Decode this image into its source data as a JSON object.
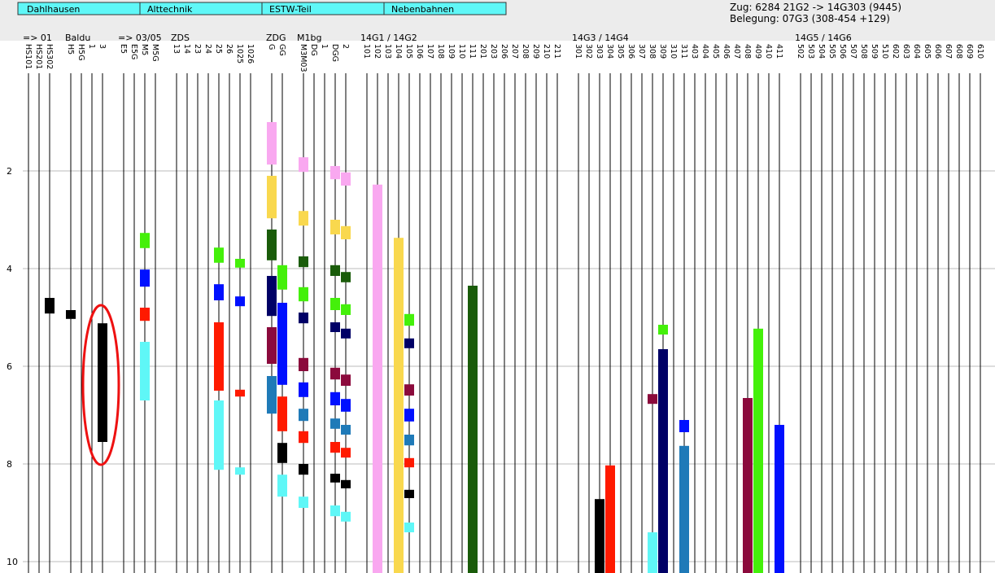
{
  "tabs": [
    "Dahlhausen",
    "Alttechnik",
    "ESTW-Teil",
    "Nebenbahnen"
  ],
  "info": [
    "Zug: 6284 21G2 -> 14G303 (9445)",
    "Belegung: 07G3 (308-454 +129)"
  ],
  "groups": [
    "=> 01",
    "Baldu",
    "=> 03/05",
    "ZDS",
    "ZDG",
    "M1bg",
    "14G1 / 14G2",
    "14G3 / 14G4",
    "14G5 / 14G6"
  ],
  "chart_data": {
    "type": "occupancy",
    "categories": [
      "HS101",
      "HS201",
      "HS302",
      null,
      "H5",
      "H5G",
      "1",
      "3",
      null,
      "E5",
      "E5G",
      "M5",
      "M5G",
      null,
      "13",
      "14",
      "23",
      "24",
      "25",
      "26",
      "1025",
      "1026",
      null,
      "G",
      "GG",
      null,
      "M3M03",
      "DG",
      "1",
      "DGG",
      "2",
      null,
      "101",
      "102",
      "103",
      "104",
      "105",
      "106",
      "107",
      "108",
      "109",
      "110",
      "111",
      "201",
      "203",
      "206",
      "207",
      "208",
      "209",
      "210",
      "211",
      null,
      "301",
      "302",
      "303",
      "304",
      "305",
      "306",
      "307",
      "308",
      "309",
      "310",
      "311",
      "403",
      "404",
      "405",
      "406",
      "407",
      "408",
      "409",
      "410",
      "411",
      null,
      "502",
      "503",
      "504",
      "505",
      "506",
      "507",
      "508",
      "509",
      "510",
      "602",
      "603",
      "604",
      "605",
      "606",
      "607",
      "608",
      "609",
      "610"
    ],
    "ylim": [
      0,
      10.25
    ],
    "yticks": [
      2,
      4,
      6,
      8,
      10
    ],
    "grid": true,
    "bars": [
      {
        "track": 2,
        "start": 4.6,
        "end": 4.92,
        "color": "#000000"
      },
      {
        "track": 4,
        "start": 4.85,
        "end": 5.03,
        "color": "#000000"
      },
      {
        "track": 7,
        "start": 5.12,
        "end": 7.55,
        "color": "#000000"
      },
      {
        "track": 11,
        "start": 3.27,
        "end": 3.58,
        "color": "#44f00a"
      },
      {
        "track": 11,
        "start": 4.02,
        "end": 4.37,
        "color": "#0010ff"
      },
      {
        "track": 11,
        "start": 4.8,
        "end": 5.07,
        "color": "#ff1a00"
      },
      {
        "track": 11,
        "start": 5.5,
        "end": 6.7,
        "color": "#5ff7f7"
      },
      {
        "track": 18,
        "start": 3.57,
        "end": 3.88,
        "color": "#44f00a"
      },
      {
        "track": 18,
        "start": 4.32,
        "end": 4.65,
        "color": "#0010ff"
      },
      {
        "track": 18,
        "start": 5.1,
        "end": 6.5,
        "color": "#ff1a00"
      },
      {
        "track": 18,
        "start": 6.7,
        "end": 8.12,
        "color": "#5ff7f7"
      },
      {
        "track": 20,
        "start": 3.8,
        "end": 3.98,
        "color": "#44f00a"
      },
      {
        "track": 20,
        "start": 4.57,
        "end": 4.77,
        "color": "#0010ff"
      },
      {
        "track": 20,
        "start": 6.48,
        "end": 6.62,
        "color": "#ff1a00"
      },
      {
        "track": 20,
        "start": 8.07,
        "end": 8.22,
        "color": "#5ff7f7"
      },
      {
        "track": 23,
        "start": 1.0,
        "end": 1.87,
        "color": "#f9a8f0"
      },
      {
        "track": 23,
        "start": 2.1,
        "end": 2.97,
        "color": "#f9d84e"
      },
      {
        "track": 23,
        "start": 3.2,
        "end": 3.83,
        "color": "#1a5c0a"
      },
      {
        "track": 23,
        "start": 4.15,
        "end": 4.97,
        "color": "#000066"
      },
      {
        "track": 23,
        "start": 5.2,
        "end": 5.95,
        "color": "#8b0a3c"
      },
      {
        "track": 23,
        "start": 6.2,
        "end": 6.97,
        "color": "#1f7ab8"
      },
      {
        "track": 24,
        "start": 3.93,
        "end": 4.43,
        "color": "#44f00a"
      },
      {
        "track": 24,
        "start": 4.7,
        "end": 6.38,
        "color": "#0010ff"
      },
      {
        "track": 24,
        "start": 6.62,
        "end": 7.33,
        "color": "#ff1a00"
      },
      {
        "track": 24,
        "start": 7.57,
        "end": 7.98,
        "color": "#000000"
      },
      {
        "track": 24,
        "start": 8.22,
        "end": 8.67,
        "color": "#5ff7f7"
      },
      {
        "track": 26,
        "start": 1.72,
        "end": 2.02,
        "color": "#f9a8f0"
      },
      {
        "track": 26,
        "start": 2.82,
        "end": 3.12,
        "color": "#f9d84e"
      },
      {
        "track": 26,
        "start": 3.75,
        "end": 3.97,
        "color": "#1a5c0a"
      },
      {
        "track": 26,
        "start": 4.38,
        "end": 4.67,
        "color": "#44f00a"
      },
      {
        "track": 26,
        "start": 4.9,
        "end": 5.12,
        "color": "#000066"
      },
      {
        "track": 26,
        "start": 5.83,
        "end": 6.1,
        "color": "#8b0a3c"
      },
      {
        "track": 26,
        "start": 6.33,
        "end": 6.63,
        "color": "#0010ff"
      },
      {
        "track": 26,
        "start": 6.87,
        "end": 7.12,
        "color": "#1f7ab8"
      },
      {
        "track": 26,
        "start": 7.33,
        "end": 7.57,
        "color": "#ff1a00"
      },
      {
        "track": 26,
        "start": 8.0,
        "end": 8.22,
        "color": "#000000"
      },
      {
        "track": 26,
        "start": 8.67,
        "end": 8.9,
        "color": "#5ff7f7"
      },
      {
        "track": 29,
        "start": 1.9,
        "end": 2.17,
        "color": "#f9a8f0"
      },
      {
        "track": 29,
        "start": 3.0,
        "end": 3.3,
        "color": "#f9d84e"
      },
      {
        "track": 29,
        "start": 3.93,
        "end": 4.15,
        "color": "#1a5c0a"
      },
      {
        "track": 29,
        "start": 4.6,
        "end": 4.85,
        "color": "#44f00a"
      },
      {
        "track": 29,
        "start": 5.1,
        "end": 5.3,
        "color": "#000066"
      },
      {
        "track": 29,
        "start": 6.03,
        "end": 6.27,
        "color": "#8b0a3c"
      },
      {
        "track": 29,
        "start": 6.53,
        "end": 6.8,
        "color": "#0010ff"
      },
      {
        "track": 29,
        "start": 7.07,
        "end": 7.28,
        "color": "#1f7ab8"
      },
      {
        "track": 29,
        "start": 7.55,
        "end": 7.77,
        "color": "#ff1a00"
      },
      {
        "track": 29,
        "start": 8.2,
        "end": 8.38,
        "color": "#000000"
      },
      {
        "track": 29,
        "start": 8.85,
        "end": 9.07,
        "color": "#5ff7f7"
      },
      {
        "track": 30,
        "start": 2.03,
        "end": 2.3,
        "color": "#f9a8f0"
      },
      {
        "track": 30,
        "start": 3.13,
        "end": 3.4,
        "color": "#f9d84e"
      },
      {
        "track": 30,
        "start": 4.07,
        "end": 4.28,
        "color": "#1a5c0a"
      },
      {
        "track": 30,
        "start": 4.73,
        "end": 4.95,
        "color": "#44f00a"
      },
      {
        "track": 30,
        "start": 5.23,
        "end": 5.43,
        "color": "#000066"
      },
      {
        "track": 30,
        "start": 6.17,
        "end": 6.4,
        "color": "#8b0a3c"
      },
      {
        "track": 30,
        "start": 6.67,
        "end": 6.93,
        "color": "#0010ff"
      },
      {
        "track": 30,
        "start": 7.2,
        "end": 7.4,
        "color": "#1f7ab8"
      },
      {
        "track": 30,
        "start": 7.67,
        "end": 7.87,
        "color": "#ff1a00"
      },
      {
        "track": 30,
        "start": 8.33,
        "end": 8.5,
        "color": "#000000"
      },
      {
        "track": 30,
        "start": 8.98,
        "end": 9.18,
        "color": "#5ff7f7"
      },
      {
        "track": 33,
        "start": 2.28,
        "end": 10.25,
        "color": "#f9a8f0"
      },
      {
        "track": 35,
        "start": 3.37,
        "end": 10.25,
        "color": "#f9d84e"
      },
      {
        "track": 36,
        "start": 4.93,
        "end": 5.17,
        "color": "#44f00a"
      },
      {
        "track": 36,
        "start": 5.43,
        "end": 5.63,
        "color": "#000066"
      },
      {
        "track": 36,
        "start": 6.37,
        "end": 6.6,
        "color": "#8b0a3c"
      },
      {
        "track": 36,
        "start": 6.87,
        "end": 7.13,
        "color": "#0010ff"
      },
      {
        "track": 36,
        "start": 7.4,
        "end": 7.62,
        "color": "#1f7ab8"
      },
      {
        "track": 36,
        "start": 7.88,
        "end": 8.07,
        "color": "#ff1a00"
      },
      {
        "track": 36,
        "start": 8.53,
        "end": 8.7,
        "color": "#000000"
      },
      {
        "track": 36,
        "start": 9.2,
        "end": 9.4,
        "color": "#5ff7f7"
      },
      {
        "track": 42,
        "start": 4.35,
        "end": 10.25,
        "color": "#1a5c0a"
      },
      {
        "track": 54,
        "start": 8.72,
        "end": 10.25,
        "color": "#000000"
      },
      {
        "track": 55,
        "start": 8.03,
        "end": 10.25,
        "color": "#ff1a00"
      },
      {
        "track": 59,
        "start": 6.57,
        "end": 6.77,
        "color": "#8b0a3c"
      },
      {
        "track": 59,
        "start": 9.4,
        "end": 10.25,
        "color": "#5ff7f7"
      },
      {
        "track": 60,
        "start": 5.15,
        "end": 5.35,
        "color": "#44f00a"
      },
      {
        "track": 60,
        "start": 5.65,
        "end": 10.25,
        "color": "#000066"
      },
      {
        "track": 62,
        "start": 7.1,
        "end": 7.35,
        "color": "#0010ff"
      },
      {
        "track": 62,
        "start": 7.63,
        "end": 10.25,
        "color": "#1f7ab8"
      },
      {
        "track": 68,
        "start": 6.65,
        "end": 10.25,
        "color": "#8b0a3c"
      },
      {
        "track": 69,
        "start": 5.23,
        "end": 10.25,
        "color": "#44f00a"
      },
      {
        "track": 71,
        "start": 7.2,
        "end": 10.25,
        "color": "#0010ff"
      }
    ]
  }
}
